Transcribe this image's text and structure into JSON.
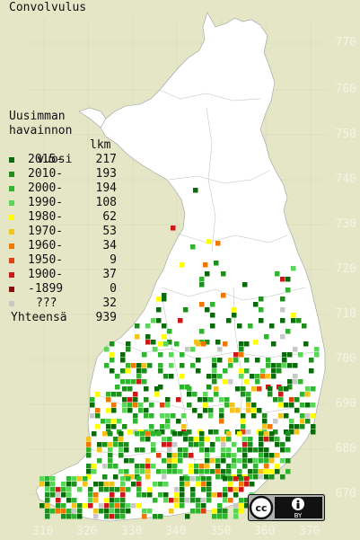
{
  "title": "Convolvulus",
  "legend": {
    "header_lines": [
      "Uusimman",
      "havainnon"
    ],
    "header_col1": "vuosi",
    "header_col2": "lkm",
    "entries": [
      {
        "label": "2015-",
        "count": "217",
        "color": "#0a6b0a"
      },
      {
        "label": "2010-",
        "count": "193",
        "color": "#1e8e1e"
      },
      {
        "label": "2000-",
        "count": "194",
        "color": "#2fb52f"
      },
      {
        "label": "1990-",
        "count": "108",
        "color": "#5bd65b"
      },
      {
        "label": "1980-",
        "count": "62",
        "color": "#ffff00"
      },
      {
        "label": "1970-",
        "count": "53",
        "color": "#f4c21c"
      },
      {
        "label": "1960-",
        "count": "34",
        "color": "#f07800"
      },
      {
        "label": "1950-",
        "count": "9",
        "color": "#e04010"
      },
      {
        "label": "1900-",
        "count": "37",
        "color": "#cc1818"
      },
      {
        "label": "-1899",
        "count": "0",
        "color": "#8a0d0d"
      },
      {
        "label": "???",
        "count": "32",
        "color": "#c8c8c8"
      }
    ],
    "total_label": "Yhteensä",
    "total_count": "939"
  },
  "axes": {
    "y_ticks": [
      "770",
      "760",
      "750",
      "740",
      "730",
      "720",
      "710",
      "700",
      "690",
      "680",
      "670"
    ],
    "x_ticks": [
      "310",
      "320",
      "330",
      "340",
      "350",
      "360",
      "370"
    ]
  },
  "license": {
    "badge": "cc",
    "by": "BY",
    "icon": "creative-commons-by-icon"
  },
  "colors": {
    "background": "#e4e6c6",
    "land": "#ffffff",
    "border": "#9aa0a0"
  }
}
